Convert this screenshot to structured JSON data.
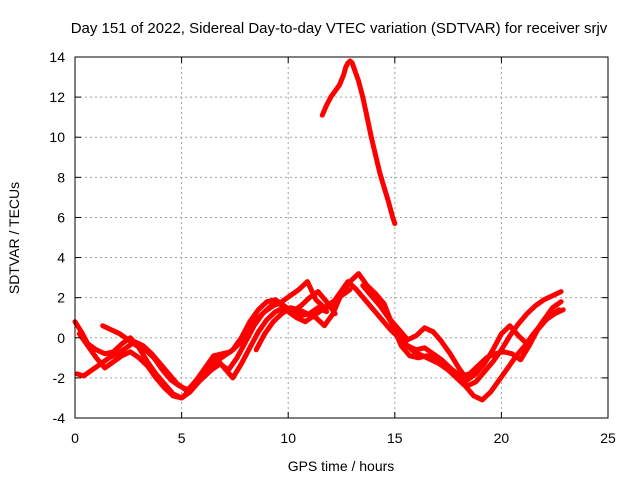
{
  "chart_data": {
    "type": "line",
    "title": "Day 151 of 2022, Sidereal Day-to-day VTEC variation (SDTVAR) for receiver srjv",
    "xlabel": "GPS time / hours",
    "ylabel": "SDTVAR / TECUs",
    "xlim": [
      0,
      25
    ],
    "ylim": [
      -4,
      14
    ],
    "xticks": [
      0,
      5,
      10,
      15,
      20,
      25
    ],
    "yticks": [
      -4,
      -2,
      0,
      2,
      4,
      6,
      8,
      10,
      12,
      14
    ],
    "grid": true,
    "legend": "none",
    "color": "#ff0000",
    "series": [
      {
        "name": "track-1",
        "x": [
          0.0,
          0.3,
          0.6,
          1.0,
          1.4,
          1.8,
          2.2,
          2.6,
          3.0,
          3.4,
          3.8,
          4.2,
          4.6,
          5.0,
          5.4,
          5.8,
          6.2,
          6.6,
          7.0,
          7.4,
          7.8,
          8.2,
          8.6,
          9.0,
          9.4,
          9.8,
          10.2,
          10.6,
          11.0,
          11.4,
          11.8
        ],
        "y": [
          0.8,
          0.3,
          -0.3,
          -0.6,
          -0.8,
          -0.7,
          -0.3,
          0.0,
          -0.5,
          -1.2,
          -1.8,
          -2.3,
          -2.8,
          -3.0,
          -2.7,
          -2.2,
          -1.6,
          -1.2,
          -0.9,
          -0.6,
          0.0,
          0.8,
          1.4,
          1.8,
          1.9,
          1.6,
          1.3,
          1.1,
          1.2,
          1.5,
          1.3
        ]
      },
      {
        "name": "track-2",
        "x": [
          0.1,
          0.4,
          0.8,
          1.2,
          1.6,
          2.0,
          2.4,
          2.8,
          3.2,
          3.6,
          4.0,
          4.4,
          4.8,
          5.2,
          5.6,
          6.0,
          6.4,
          6.8,
          7.2,
          7.6,
          8.0,
          8.4,
          8.8,
          9.2,
          9.6,
          10.0,
          10.4,
          10.8,
          11.2,
          11.6,
          12.0
        ],
        "y": [
          -1.8,
          -1.9,
          -1.6,
          -1.3,
          -1.0,
          -0.8,
          -0.5,
          -0.2,
          -0.4,
          -0.8,
          -1.3,
          -1.8,
          -2.3,
          -2.6,
          -2.4,
          -2.0,
          -1.6,
          -1.3,
          -1.6,
          -1.0,
          -0.2,
          0.6,
          1.2,
          1.6,
          1.7,
          1.3,
          1.0,
          0.8,
          1.1,
          1.4,
          1.6
        ]
      },
      {
        "name": "track-3",
        "x": [
          0.2,
          0.6,
          1.0,
          1.4,
          1.8,
          2.2,
          2.6,
          3.0,
          3.4,
          3.8,
          4.2,
          4.6,
          5.0,
          5.4,
          5.8,
          6.2,
          6.6,
          7.0,
          7.4,
          7.8,
          8.2,
          8.6,
          9.0,
          9.4,
          9.8,
          10.2,
          10.6,
          11.0,
          11.4,
          11.8,
          12.2
        ],
        "y": [
          0.2,
          -0.4,
          -1.0,
          -1.5,
          -1.2,
          -0.9,
          -0.7,
          -1.0,
          -1.4,
          -2.0,
          -2.5,
          -2.9,
          -3.0,
          -2.6,
          -2.0,
          -1.4,
          -1.0,
          -1.5,
          -2.0,
          -1.3,
          -0.5,
          0.3,
          0.9,
          1.3,
          1.5,
          1.3,
          1.6,
          2.0,
          2.3,
          1.8,
          1.2
        ]
      },
      {
        "name": "track-4",
        "x": [
          1.3,
          1.7,
          2.1,
          2.5,
          2.9,
          3.3,
          3.7,
          4.1,
          4.5,
          4.9,
          5.3,
          5.7,
          6.1,
          6.5,
          6.9,
          7.3,
          7.7,
          8.1,
          8.5,
          8.9,
          9.3,
          9.7,
          10.1,
          10.5,
          10.9,
          11.3,
          11.7,
          12.1,
          12.5,
          12.9
        ],
        "y": [
          0.6,
          0.4,
          0.2,
          -0.1,
          -0.4,
          -0.6,
          -1.0,
          -1.6,
          -2.1,
          -2.4,
          -2.6,
          -2.1,
          -1.5,
          -0.9,
          -0.8,
          -0.7,
          -0.3,
          0.3,
          0.9,
          1.3,
          1.6,
          1.8,
          2.1,
          2.4,
          2.8,
          1.9,
          1.5,
          1.8,
          2.1,
          2.4
        ]
      },
      {
        "name": "track-5",
        "x": [
          8.5,
          8.9,
          9.3,
          9.7,
          10.1,
          10.5,
          10.9,
          11.3,
          11.7,
          12.1,
          12.5,
          12.9,
          13.3,
          13.7,
          14.1,
          14.5,
          14.9,
          15.3,
          15.7,
          16.1,
          16.5,
          16.9,
          17.3,
          17.7,
          18.1,
          18.5,
          18.9,
          19.3,
          19.7,
          20.1,
          20.5,
          20.9,
          21.3,
          21.7,
          22.1,
          22.5,
          22.9
        ],
        "y": [
          -0.6,
          0.2,
          0.8,
          1.2,
          1.5,
          1.4,
          1.2,
          1.0,
          0.6,
          1.2,
          2.2,
          2.8,
          3.2,
          2.6,
          2.2,
          1.7,
          0.6,
          -0.4,
          -0.9,
          -1.0,
          -0.9,
          -1.0,
          -1.3,
          -1.6,
          -1.9,
          -1.8,
          -1.4,
          -1.0,
          -0.8,
          -0.7,
          -0.8,
          -1.1,
          -0.4,
          0.4,
          0.9,
          1.2,
          1.4
        ]
      },
      {
        "name": "track-6",
        "x": [
          12.0,
          12.4,
          12.8,
          13.2,
          13.6,
          14.0,
          14.4,
          14.8,
          15.2,
          15.6,
          16.0,
          16.4,
          16.8,
          17.2,
          17.6,
          18.0,
          18.4,
          18.8,
          19.2,
          19.6,
          20.0,
          20.4,
          20.8,
          21.2,
          21.6,
          22.0,
          22.4,
          22.8
        ],
        "y": [
          1.6,
          2.2,
          2.8,
          2.4,
          1.9,
          1.4,
          0.9,
          0.4,
          0.0,
          -0.4,
          -0.6,
          -0.5,
          -0.8,
          -1.1,
          -1.5,
          -1.9,
          -2.4,
          -2.2,
          -1.7,
          -1.2,
          -0.6,
          0.1,
          0.7,
          1.2,
          1.6,
          1.9,
          2.1,
          2.3
        ]
      },
      {
        "name": "track-7",
        "x": [
          13.5,
          13.9,
          14.3,
          14.7,
          15.1,
          15.5,
          15.9,
          16.3,
          16.7,
          17.1,
          17.5,
          17.9,
          18.3,
          18.7,
          19.1,
          19.5,
          19.9,
          20.3,
          20.7,
          21.1,
          21.5,
          21.9,
          22.3,
          22.7
        ],
        "y": [
          2.6,
          2.1,
          1.6,
          1.0,
          0.3,
          -0.3,
          -0.7,
          -0.9,
          -1.1,
          -1.3,
          -1.6,
          -2.0,
          -2.4,
          -2.9,
          -3.1,
          -2.7,
          -2.1,
          -1.5,
          -0.9,
          -0.4,
          0.2,
          0.7,
          1.1,
          1.4
        ]
      },
      {
        "name": "track-8",
        "x": [
          14.8,
          15.2,
          15.6,
          16.0,
          16.4,
          16.8,
          17.2,
          17.6,
          18.0,
          18.4,
          18.8,
          19.2,
          19.6,
          20.0,
          20.4,
          20.8,
          21.2,
          21.6,
          22.0,
          22.4,
          22.8
        ],
        "y": [
          0.9,
          0.4,
          -0.1,
          0.1,
          0.5,
          0.3,
          -0.2,
          -0.8,
          -1.5,
          -2.1,
          -1.8,
          -1.3,
          -0.6,
          0.2,
          0.6,
          0.1,
          -0.3,
          0.3,
          0.9,
          1.5,
          1.8
        ]
      },
      {
        "name": "track-9",
        "x": [
          11.6,
          11.8,
          12.0,
          12.2,
          12.4,
          12.6,
          12.7,
          12.8,
          12.9,
          13.0,
          13.1,
          13.3,
          13.5,
          13.7,
          13.9,
          14.1,
          14.3,
          14.5,
          14.7,
          14.9,
          15.0
        ],
        "y": [
          11.1,
          11.6,
          12.0,
          12.3,
          12.6,
          13.1,
          13.5,
          13.7,
          13.8,
          13.7,
          13.4,
          12.8,
          12.0,
          11.0,
          10.0,
          9.1,
          8.2,
          7.5,
          6.8,
          6.0,
          5.7
        ]
      }
    ]
  }
}
